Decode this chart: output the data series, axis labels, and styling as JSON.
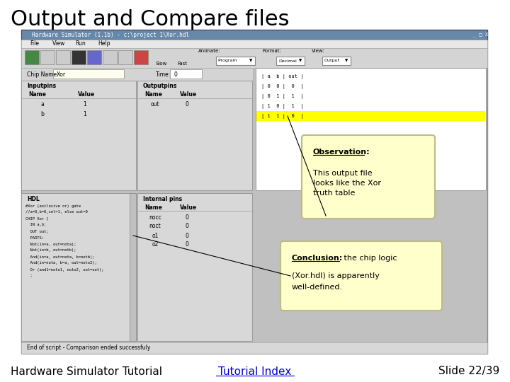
{
  "title": "Output and Compare files",
  "title_fontsize": 22,
  "title_color": "#000000",
  "bg_color": "#ffffff",
  "footer_left": "Hardware Simulator Tutorial",
  "footer_center": "Tutorial Index",
  "footer_center_color": "#0000cc",
  "footer_right": "Slide 22/39",
  "footer_fontsize": 11,
  "simulator_title": "Hardware Simulator (1.1b) - c:\\project 1\\Xor.hdl",
  "status_bar": "End of script - Comparison ended successfuly",
  "observation_title": "Observation:",
  "observation_text": "This output file\nlooks like the Xor\ntruth table",
  "conclusion_title": "Conclusion:",
  "conclusion_text_inline": " the chip logic",
  "conclusion_text_line2": "(Xor.hdl) is apparently",
  "conclusion_text_line3": "well-defined.",
  "callout_bg": "#ffffcc",
  "callout_border": "#bbbb88",
  "window_bg": "#c0c0c0",
  "yellow_highlight": "#ffff00",
  "chip_name_label": "Chip Name:",
  "chip_name_value": "Xor",
  "time_label": "Time:",
  "time_value": "0",
  "input_pins_label": "Inputpins",
  "output_pins_label": "Outputpins",
  "hdl_label": "HDL",
  "internal_pins_label": "Internal pins",
  "input_pins_names": [
    "a",
    "b"
  ],
  "input_pins_values": [
    "1",
    "1"
  ],
  "output_pin_name": "out",
  "output_pin_value": "0",
  "internal_pin_names": [
    "nocc",
    "noct",
    "o1",
    "o2"
  ],
  "internal_pin_values": [
    "0",
    "0",
    "0",
    "0"
  ],
  "hdl_lines": [
    "#Xor (exclusive or) gate",
    "//a=0,b=0,sel=1, else out=0",
    "CHIP Xor {",
    "  IN a,b;",
    "  OUT out;",
    "  PARTS:",
    "  Not(in=a, out=nota);",
    "  Not(in=b, out=notb);",
    "  And(in=a, out=nota, b=notb);",
    "  And(in=nota, b=a, out=noto2);",
    "  Or (and1=noto1, noto2, out=out);",
    "  ;"
  ],
  "tt_rows": [
    "| a  b | out |",
    "| 0  0 |  0  |",
    "| 0  1 |  1  |",
    "| 1  0 |  1  |",
    "| 1  1 |  0  |"
  ],
  "tt_highlight_row": 4
}
